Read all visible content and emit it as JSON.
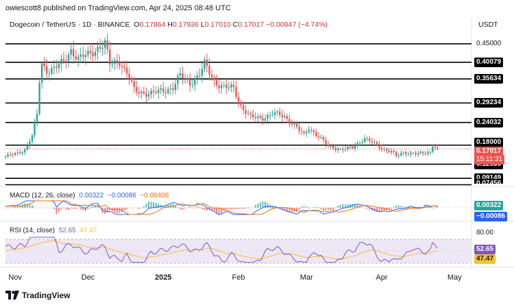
{
  "header": "owiescott8 published on TradingView.com, Apr 24, 2025 08:48 UTC",
  "symbol": "Dogecoin / TetherUS · 1D · BINANCE",
  "ohlc": {
    "o_label": "O",
    "o": "0.17864",
    "h_label": "H",
    "h": "0.17936",
    "l_label": "L",
    "l": "0.17010",
    "c_label": "C",
    "c": "0.17017",
    "change": "−0.00847 (−4.74%)"
  },
  "currency": "USDT",
  "price_axis_labels": [
    "0.45000"
  ],
  "level_tags": [
    "0.40079",
    "0.35634",
    "0.29234",
    "0.24032",
    "0.18000",
    "0.12930",
    "0.09149"
  ],
  "partial_tags": [
    "0.07456"
  ],
  "current_price_tag": {
    "price": "0.17017",
    "countdown": "15:11:31"
  },
  "macd": {
    "legend_name": "MACD (12, 26, close)",
    "legend_v1": "0.00322",
    "legend_v2": "−0.00086",
    "legend_v3": "−0.00408",
    "tag_macd": "0.00322",
    "tag_signal": "−0.00086"
  },
  "rsi": {
    "legend_name": "RSI (14, close)",
    "legend_v1": "52.65",
    "legend_v2": "47.47",
    "level_upper": "80.00",
    "tag_rsi": "52.65",
    "tag_ma": "47.47"
  },
  "time_labels": [
    "Nov",
    "Dec",
    "2025",
    "Feb",
    "Mar",
    "Apr",
    "May"
  ],
  "footer": "TradingView",
  "colors": {
    "up": "#26a69a",
    "down": "#ef5350",
    "macd_line": "#2962ff",
    "signal_line": "#ff6d00",
    "rsi_line": "#7e57c2",
    "rsi_ma": "#f7c22a",
    "rsi_band": "#ede7f6"
  },
  "chart_data": {
    "type": "candlestick",
    "title": "Dogecoin / TetherUS · 1D · BINANCE",
    "unit": "USDT",
    "ylim": [
      0.07,
      0.49
    ],
    "x_range": [
      "2024-10-28",
      "2025-05-08"
    ],
    "horizontal_levels": [
      0.45,
      0.40079,
      0.35634,
      0.29234,
      0.24032,
      0.18,
      0.1293,
      0.09149,
      0.07456
    ],
    "current_price": 0.17017,
    "close_path": [
      [
        "2024-10-28",
        0.15
      ],
      [
        "2024-11-01",
        0.156
      ],
      [
        "2024-11-05",
        0.168
      ],
      [
        "2024-11-08",
        0.205
      ],
      [
        "2024-11-10",
        0.26
      ],
      [
        "2024-11-11",
        0.35
      ],
      [
        "2024-11-12",
        0.395
      ],
      [
        "2024-11-14",
        0.38
      ],
      [
        "2024-11-17",
        0.385
      ],
      [
        "2024-11-21",
        0.4
      ],
      [
        "2024-11-24",
        0.435
      ],
      [
        "2024-11-27",
        0.41
      ],
      [
        "2024-12-01",
        0.42
      ],
      [
        "2024-12-05",
        0.44
      ],
      [
        "2024-12-08",
        0.45
      ],
      [
        "2024-12-10",
        0.395
      ],
      [
        "2024-12-14",
        0.405
      ],
      [
        "2024-12-18",
        0.36
      ],
      [
        "2024-12-20",
        0.325
      ],
      [
        "2024-12-24",
        0.32
      ],
      [
        "2024-12-28",
        0.318
      ],
      [
        "2025-01-01",
        0.325
      ],
      [
        "2025-01-05",
        0.335
      ],
      [
        "2025-01-08",
        0.365
      ],
      [
        "2025-01-12",
        0.345
      ],
      [
        "2025-01-16",
        0.37
      ],
      [
        "2025-01-18",
        0.395
      ],
      [
        "2025-01-22",
        0.35
      ],
      [
        "2025-01-26",
        0.335
      ],
      [
        "2025-01-30",
        0.33
      ],
      [
        "2025-02-02",
        0.285
      ],
      [
        "2025-02-06",
        0.255
      ],
      [
        "2025-02-10",
        0.25
      ],
      [
        "2025-02-15",
        0.265
      ],
      [
        "2025-02-20",
        0.255
      ],
      [
        "2025-02-24",
        0.235
      ],
      [
        "2025-02-28",
        0.205
      ],
      [
        "2025-03-02",
        0.225
      ],
      [
        "2025-03-06",
        0.205
      ],
      [
        "2025-03-10",
        0.175
      ],
      [
        "2025-03-15",
        0.17
      ],
      [
        "2025-03-20",
        0.172
      ],
      [
        "2025-03-25",
        0.2
      ],
      [
        "2025-03-28",
        0.188
      ],
      [
        "2025-04-01",
        0.17
      ],
      [
        "2025-04-05",
        0.165
      ],
      [
        "2025-04-07",
        0.15
      ],
      [
        "2025-04-10",
        0.158
      ],
      [
        "2025-04-14",
        0.16
      ],
      [
        "2025-04-18",
        0.156
      ],
      [
        "2025-04-21",
        0.16
      ],
      [
        "2025-04-22",
        0.18
      ],
      [
        "2025-04-23",
        0.179
      ],
      [
        "2025-04-24",
        0.17017
      ]
    ],
    "macd": {
      "macd": 0.00322,
      "signal": -0.00086,
      "histogram": -0.00408
    },
    "rsi": {
      "value": 52.65,
      "ma": 47.47,
      "upper": 80,
      "lower": 20
    }
  }
}
